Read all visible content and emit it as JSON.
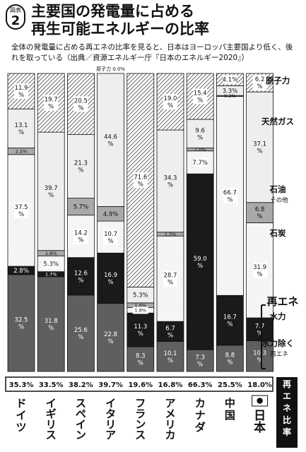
{
  "figure": {
    "label": "図表",
    "number": "2",
    "title_line1": "主要国の発電量に占める",
    "title_line2": "再生可能エネルギーの比率",
    "subtitle": "全体の発電量に占める再エネの比率を見ると、日本はヨーロッパ主要国より低く、後れを取っている（出典／資源エネルギー庁『日本のエネルギー2020』）"
  },
  "chart_data": {
    "type": "bar",
    "stacked": true,
    "orientation": "vertical",
    "categories": [
      "ドイツ",
      "イギリス",
      "スペイン",
      "イタリア",
      "フランス",
      "アメリカ",
      "カナダ",
      "中国",
      "日本"
    ],
    "series": [
      {
        "name": "再エネ（水力除く）",
        "values": [
          32.5,
          31.8,
          25.6,
          22.8,
          8.3,
          10.1,
          7.3,
          8.8,
          10.3
        ]
      },
      {
        "name": "水力",
        "values": [
          2.8,
          1.7,
          12.6,
          16.9,
          11.3,
          6.7,
          59.0,
          16.7,
          7.7
        ]
      },
      {
        "name": "石炭",
        "values": [
          37.5,
          5.3,
          14.2,
          10.7,
          1.8,
          28.7,
          7.7,
          66.7,
          31.9
        ]
      },
      {
        "name": "石油その他",
        "values": [
          2.2,
          1.8,
          5.7,
          4.9,
          1.6,
          1.3,
          1.0,
          0.3,
          6.8
        ]
      },
      {
        "name": "天然ガス",
        "values": [
          13.1,
          39.7,
          21.3,
          44.6,
          5.3,
          34.3,
          9.6,
          3.3,
          37.1
        ]
      },
      {
        "name": "原子力",
        "values": [
          11.9,
          19.7,
          20.5,
          0.0,
          71.6,
          19.0,
          15.4,
          4.1,
          6.2
        ]
      }
    ],
    "value_labels": {
      "再エネ（水力除く）": [
        "32.5\n%",
        "31.8\n%",
        "25.6\n%",
        "22.8\n%",
        "8.3\n%",
        "10.1\n%",
        "7.3\n%",
        "8.8\n%",
        "10.3\n%"
      ],
      "水力": [
        "2.8%",
        "1.7%",
        "12.6\n%",
        "16.9\n%",
        "11.3\n%",
        "6.7\n%",
        "59.0\n%",
        "16.7\n%",
        "7.7\n%"
      ],
      "石炭": [
        "37.5\n%",
        "5.3%",
        "14.2\n%",
        "10.7\n%",
        "1.8%",
        "28.7\n%",
        "7.7%",
        "66.7\n%",
        "31.9\n%"
      ],
      "石油その他": [
        "2.2%",
        "1.8%",
        "5.7%",
        "4.9%",
        "1.6%",
        "1.3%",
        "1.0%",
        "0.3%",
        "6.8\n%"
      ],
      "天然ガス": [
        "13.1\n%",
        "39.7\n%",
        "21.3\n%",
        "44.6\n%",
        "5.3%",
        "34.3\n%",
        "9.6\n%",
        "3.3%",
        "37.1\n%"
      ],
      "原子力": [
        "11.9\n%",
        "19.7\n%",
        "20.5\n%",
        "",
        "71.6\n%",
        "19.0\n%",
        "15.4\n%",
        "4.1%",
        "6.2\n%"
      ]
    },
    "special_label": "原子力 0.0%",
    "renewable_ratio_labels": [
      "35.3%",
      "33.5%",
      "38.2%",
      "39.7%",
      "19.6%",
      "16.8%",
      "66.3%",
      "25.5%",
      "18.0%"
    ],
    "legend": [
      {
        "text": "原子力"
      },
      {
        "text": "天然ガス"
      },
      {
        "text": "石油",
        "sub": "その他"
      },
      {
        "text": "石炭"
      },
      {
        "text": "水力"
      },
      {
        "text": "水力除く",
        "sub": "再エネ"
      }
    ],
    "renewable_bracket_label": "再エネ",
    "ratio_row_label": "再エネ比率",
    "ylim": [
      0,
      100
    ],
    "colors": {
      "renewable": "#5f5f5f",
      "hydro": "#1a1a1a",
      "coal": "#ffffff",
      "oil": "#a9a9a9",
      "gas": "#eeeeee",
      "nuclear": "#ffffff"
    }
  }
}
